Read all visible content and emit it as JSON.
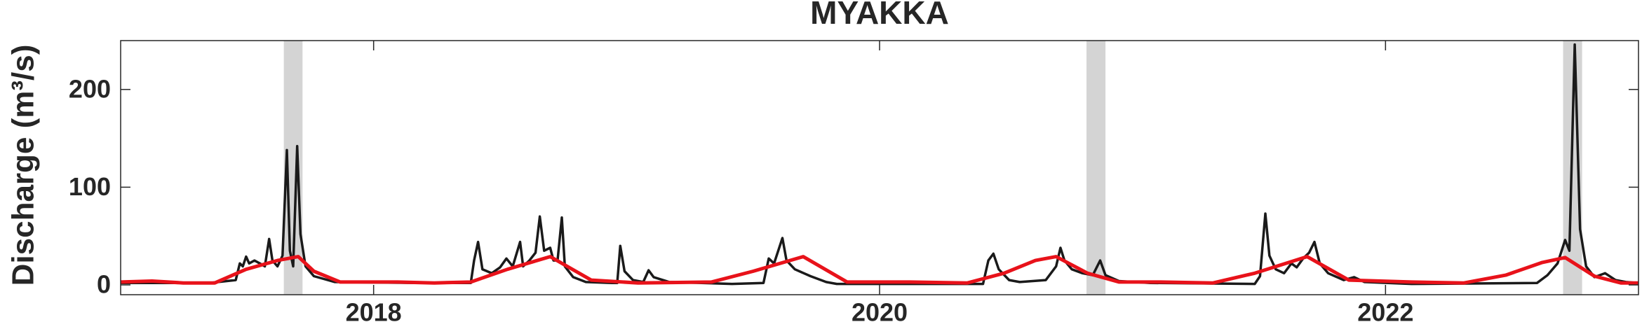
{
  "chart_data": {
    "type": "line",
    "title": "MYAKKA",
    "y_label": "Discharge (m³/s)",
    "xlim": [
      2017,
      2023
    ],
    "xticks": [
      2018,
      2020,
      2022
    ],
    "ylim": [
      -10,
      250
    ],
    "yticks": [
      0,
      100,
      200
    ],
    "shaded_spans": [
      [
        2017.645,
        2017.719
      ],
      [
        2020.818,
        2020.893
      ],
      [
        2022.702,
        2022.777
      ]
    ],
    "shade_color": "#d4d4d4",
    "series": [
      {
        "color": "#1a1a1a",
        "x": [
          2017.0,
          2017.35,
          2017.455,
          2017.471,
          2017.483,
          2017.496,
          2017.508,
          2017.529,
          2017.55,
          2017.57,
          2017.587,
          2017.6,
          2017.62,
          2017.64,
          2017.657,
          2017.669,
          2017.682,
          2017.698,
          2017.711,
          2017.731,
          2017.764,
          2017.847,
          2018.178,
          2018.384,
          2018.397,
          2018.413,
          2018.43,
          2018.467,
          2018.5,
          2018.525,
          2018.55,
          2018.579,
          2018.591,
          2018.616,
          2018.64,
          2018.657,
          2018.674,
          2018.698,
          2018.711,
          2018.727,
          2018.744,
          2018.756,
          2018.789,
          2018.839,
          2018.942,
          2018.963,
          2018.975,
          2018.992,
          2019.025,
          2019.066,
          2019.087,
          2019.107,
          2019.169,
          2019.417,
          2019.541,
          2019.562,
          2019.583,
          2019.616,
          2019.632,
          2019.665,
          2019.727,
          2019.789,
          2019.831,
          2020.409,
          2020.43,
          2020.45,
          2020.471,
          2020.512,
          2020.554,
          2020.657,
          2020.698,
          2020.715,
          2020.731,
          2020.76,
          2020.802,
          2020.843,
          2020.872,
          2020.893,
          2020.946,
          2021.07,
          2021.483,
          2021.504,
          2021.525,
          2021.541,
          2021.566,
          2021.599,
          2021.628,
          2021.649,
          2021.674,
          2021.698,
          2021.719,
          2021.74,
          2021.773,
          2021.835,
          2021.876,
          2021.917,
          2022.103,
          2022.599,
          2022.64,
          2022.68,
          2022.71,
          2022.727,
          2022.748,
          2022.769,
          2022.793,
          2022.826,
          2022.868,
          2022.909,
          2022.95,
          2023.0
        ],
        "values": [
          2,
          2,
          5,
          22,
          19,
          29,
          22,
          25,
          22,
          19,
          47,
          25,
          19,
          30,
          138,
          35,
          19,
          142,
          52,
          19,
          9,
          3,
          2,
          2,
          25,
          44,
          16,
          12,
          18,
          27,
          19,
          44,
          19,
          25,
          33,
          70,
          35,
          38,
          25,
          25,
          69,
          19,
          8,
          3,
          2,
          2,
          40,
          14,
          5,
          3,
          15,
          8,
          3,
          1,
          2,
          27,
          22,
          48,
          25,
          16,
          9,
          3,
          1,
          1,
          25,
          32,
          16,
          5,
          3,
          5,
          19,
          38,
          25,
          16,
          12,
          10,
          25,
          10,
          4,
          2,
          1,
          9,
          73,
          30,
          16,
          12,
          22,
          18,
          27,
          33,
          44,
          22,
          12,
          5,
          8,
          3,
          1,
          2,
          10,
          22,
          46,
          35,
          246,
          57,
          19,
          8,
          12,
          5,
          3,
          2
        ]
      },
      {
        "color": "#e8121a",
        "x": [
          2017.0,
          2017.124,
          2017.248,
          2017.372,
          2017.496,
          2017.62,
          2017.702,
          2017.764,
          2017.868,
          2018.095,
          2018.24,
          2018.384,
          2018.529,
          2018.698,
          2018.86,
          2019.045,
          2019.335,
          2019.5,
          2019.698,
          2019.872,
          2020.12,
          2020.347,
          2020.492,
          2020.616,
          2020.698,
          2020.822,
          2020.946,
          2021.112,
          2021.318,
          2021.483,
          2021.69,
          2021.855,
          2022.103,
          2022.31,
          2022.475,
          2022.62,
          2022.71,
          2022.826,
          2022.93,
          2023.0
        ],
        "values": [
          3,
          4,
          2,
          2,
          16,
          25,
          29,
          14,
          3,
          3,
          2,
          3,
          16,
          29,
          5,
          2,
          3,
          14,
          29,
          3,
          3,
          2,
          12,
          25,
          29,
          12,
          3,
          3,
          2,
          12,
          29,
          5,
          3,
          2,
          10,
          23,
          28,
          9,
          2,
          2
        ]
      }
    ]
  }
}
